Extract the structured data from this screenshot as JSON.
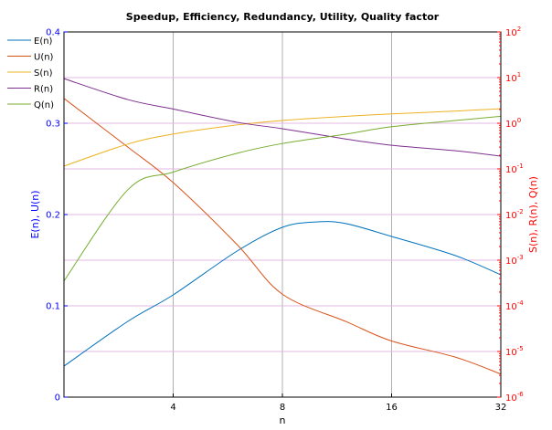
{
  "chart_data": {
    "type": "line",
    "title": "Speedup, Efficiency, Redundancy, Utility, Quality factor",
    "xlabel": "n",
    "ylabel_left": "E(n), U(n)",
    "ylabel_right": "S(n), R(n), Q(n)",
    "x_scale": "log2",
    "xlim": [
      2,
      32
    ],
    "x_ticks": [
      4,
      8,
      16,
      32
    ],
    "ylim_left": [
      0,
      0.4
    ],
    "y_ticks_left": [
      0,
      0.1,
      0.2,
      0.3,
      0.4
    ],
    "y_scale_right": "log10",
    "ylim_right": [
      1e-06,
      100
    ],
    "y_ticks_right": [
      {
        "base": "10",
        "exp": "-6"
      },
      {
        "base": "10",
        "exp": "-5"
      },
      {
        "base": "10",
        "exp": "-4"
      },
      {
        "base": "10",
        "exp": "-3"
      },
      {
        "base": "10",
        "exp": "-2"
      },
      {
        "base": "10",
        "exp": "-1"
      },
      {
        "base": "10",
        "exp": "0"
      },
      {
        "base": "10",
        "exp": "1"
      },
      {
        "base": "10",
        "exp": "2"
      }
    ],
    "y_ticks_right_values": [
      -6,
      -5,
      -4,
      -3,
      -2,
      -1,
      0,
      1,
      2
    ],
    "grid": true,
    "legend_position": "top-left",
    "colors": {
      "left_axis": "#0000ff",
      "right_axis": "#ff0000",
      "grid_x": "#b0b0b0",
      "grid_y": "#e6b8e6"
    },
    "series": [
      {
        "name": "E(n)",
        "axis": "left",
        "color": "#0072bd",
        "x": [
          2,
          3,
          4,
          6,
          8,
          10,
          12,
          16,
          24,
          32
        ],
        "y": [
          0.034,
          0.083,
          0.112,
          0.16,
          0.186,
          0.192,
          0.19,
          0.176,
          0.155,
          0.134
        ]
      },
      {
        "name": "U(n)",
        "axis": "right",
        "color": "#d95319",
        "x": [
          2,
          3,
          4,
          6,
          8,
          12,
          16,
          24,
          32
        ],
        "y": [
          3.5,
          0.3,
          0.05,
          0.0022,
          0.00018,
          4.5e-05,
          1.7e-05,
          7.5e-06,
          3.2e-06
        ]
      },
      {
        "name": "S(n)",
        "axis": "right",
        "color": "#edb120",
        "x": [
          2,
          3,
          4,
          6,
          8,
          12,
          16,
          24,
          32
        ],
        "y": [
          0.115,
          0.35,
          0.58,
          0.92,
          1.15,
          1.42,
          1.6,
          1.85,
          2.08
        ]
      },
      {
        "name": "R(n)",
        "axis": "right",
        "color": "#7e2f8e",
        "x": [
          2,
          3,
          4,
          6,
          8,
          12,
          16,
          24,
          32
        ],
        "y": [
          9.5,
          3.3,
          2.05,
          1.05,
          0.76,
          0.45,
          0.33,
          0.25,
          0.19
        ]
      },
      {
        "name": "Q(n)",
        "axis": "right",
        "color": "#77ac30",
        "x": [
          2,
          3,
          4,
          6,
          8,
          12,
          16,
          24,
          32
        ],
        "y": [
          0.00035,
          0.035,
          0.085,
          0.22,
          0.36,
          0.58,
          0.84,
          1.15,
          1.42
        ]
      }
    ]
  }
}
